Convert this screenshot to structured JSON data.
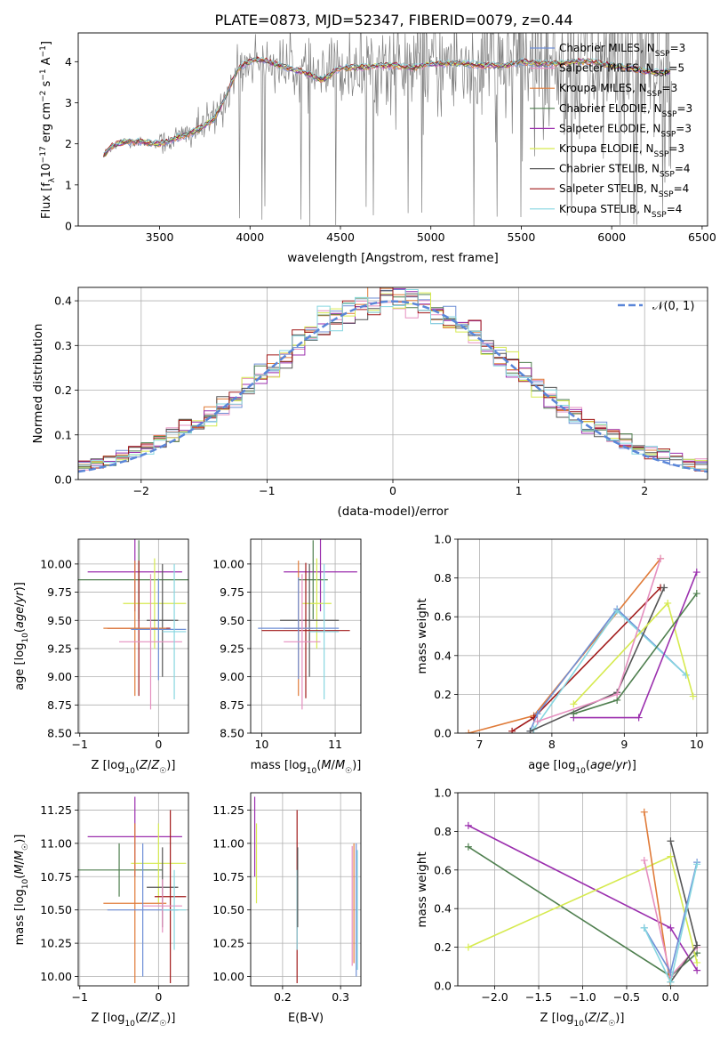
{
  "title": "PLATE=0873, MJD=52347, FIBERID=0079, z=0.44",
  "colors": {
    "chabrier_miles": "#6f8fd6",
    "salpeter_miles": "#e58fbf",
    "kroupa_miles": "#e07b39",
    "chabrier_elodie": "#4f7f4f",
    "salpeter_elodie": "#9b2fae",
    "kroupa_elodie": "#d6ea4f",
    "chabrier_stelib": "#555555",
    "salpeter_stelib": "#a11a1a",
    "kroupa_stelib": "#86d6e0",
    "normal": "#5a86d8"
  },
  "chart_data": [
    {
      "type": "line",
      "panel": "spectrum",
      "title": "PLATE=0873, MJD=52347, FIBERID=0079, z=0.44",
      "xlabel": "wavelength [Angstrom, rest frame]",
      "ylabel": "Flux [f_λ 10^-17 erg cm^-2 s^-1 A^-1]",
      "xlim": [
        3050,
        6530
      ],
      "ylim": [
        0,
        4.7
      ],
      "xticks": [
        "3500",
        "4000",
        "4500",
        "5000",
        "5500",
        "6000",
        "6500"
      ],
      "yticks": [
        "0",
        "1",
        "2",
        "3",
        "4"
      ],
      "legend_position": "top-right",
      "legend": [
        {
          "label": "Chabrier MILES, N",
          "sub": "SSP",
          "value": "=3"
        },
        {
          "label": "Salpeter MILES, N",
          "sub": "SSP",
          "value": "=5"
        },
        {
          "label": "Kroupa MILES, N",
          "sub": "SSP",
          "value": "=3"
        },
        {
          "label": "Chabrier ELODIE, N",
          "sub": "SSP",
          "value": "=3"
        },
        {
          "label": "Salpeter ELODIE, N",
          "sub": "SSP",
          "value": "=3"
        },
        {
          "label": "Kroupa ELODIE, N",
          "sub": "SSP",
          "value": "=3"
        },
        {
          "label": "Chabrier STELIB, N",
          "sub": "SSP",
          "value": "=4"
        },
        {
          "label": "Salpeter STELIB, N",
          "sub": "SSP",
          "value": "=4"
        },
        {
          "label": "Kroupa STELIB, N",
          "sub": "SSP",
          "value": "=4"
        }
      ],
      "model_continuum": {
        "x": [
          3190,
          3220,
          3300,
          3400,
          3500,
          3600,
          3700,
          3800,
          3850,
          3900,
          3950,
          4000,
          4050,
          4100,
          4200,
          4300,
          4400,
          4500,
          4600,
          4700,
          4800,
          4900,
          5000,
          5100,
          5200,
          5300,
          5400,
          5500,
          5600,
          5700,
          5800,
          5900,
          6000,
          6100,
          6200,
          6300
        ],
        "y": [
          1.7,
          1.9,
          2.05,
          2.05,
          2.0,
          2.15,
          2.3,
          2.6,
          3.0,
          3.5,
          3.9,
          4.0,
          4.05,
          4.0,
          3.85,
          3.75,
          3.55,
          3.85,
          3.85,
          3.9,
          3.9,
          3.85,
          3.95,
          3.95,
          3.95,
          3.9,
          3.9,
          4.0,
          3.95,
          3.95,
          4.0,
          4.0,
          3.9,
          3.85,
          3.75,
          3.75
        ]
      }
    },
    {
      "type": "line",
      "panel": "residual_histogram",
      "xlabel": "(data-model)/error",
      "ylabel": "Normed distribution",
      "xlim": [
        -2.5,
        2.5
      ],
      "ylim": [
        0,
        0.43
      ],
      "xticks": [
        "−2",
        "−1",
        "0",
        "1",
        "2"
      ],
      "yticks": [
        "0.0",
        "0.1",
        "0.2",
        "0.3",
        "0.4"
      ],
      "grid": true,
      "legend_position": "top-right",
      "reference_curve": {
        "name": "𝒩(0, 1)",
        "mu": 0,
        "sigma": 1
      },
      "bin_width": 0.1
    },
    {
      "type": "scatter",
      "panel": "age_vs_Z",
      "xlabel": "Z [log10(Z/Z☉)]",
      "ylabel": "age [log10(age/yr)]",
      "xlim": [
        -1.02,
        0.38
      ],
      "ylim": [
        8.5,
        10.22
      ],
      "xticks": [
        "−1",
        "0"
      ],
      "yticks": [
        "8.50",
        "8.75",
        "9.00",
        "9.25",
        "9.50",
        "9.75",
        "10.00"
      ],
      "grid": true,
      "points": [
        {
          "model": "salpeter_elodie",
          "x": -0.3,
          "xerr": 0.6,
          "y": 9.93,
          "yerr": 0.35
        },
        {
          "model": "chabrier_elodie",
          "x": -0.25,
          "xerr": 1.0,
          "y": 9.86,
          "yerr": 0.35
        },
        {
          "model": "kroupa_elodie",
          "x": -0.05,
          "xerr": 0.4,
          "y": 9.65,
          "yerr": 0.4
        },
        {
          "model": "chabrier_stelib",
          "x": 0.05,
          "xerr": 0.2,
          "y": 9.5,
          "yerr": 0.5
        },
        {
          "model": "salpeter_stelib",
          "x": -0.25,
          "xerr": 0.4,
          "y": 9.43,
          "yerr": 0.6
        },
        {
          "model": "kroupa_miles",
          "x": -0.3,
          "xerr": 0.4,
          "y": 9.43,
          "yerr": 0.6
        },
        {
          "model": "chabrier_miles",
          "x": 0.0,
          "xerr": 0.35,
          "y": 9.42,
          "yerr": 0.45
        },
        {
          "model": "salpeter_miles",
          "x": -0.1,
          "xerr": 0.4,
          "y": 9.31,
          "yerr": 0.6
        },
        {
          "model": "kroupa_stelib",
          "x": 0.2,
          "xerr": 0.15,
          "y": 9.4,
          "yerr": 0.6
        }
      ]
    },
    {
      "type": "scatter",
      "panel": "age_vs_mass",
      "xlabel": "mass [log10(M/M☉)]",
      "xlim": [
        9.85,
        11.35
      ],
      "ylim": [
        8.5,
        10.22
      ],
      "xticks": [
        "10",
        "11"
      ],
      "yticks": [
        "8.50",
        "8.75",
        "9.00",
        "9.25",
        "9.50",
        "9.75",
        "10.00"
      ],
      "grid": true,
      "points": [
        {
          "model": "salpeter_elodie",
          "x": 10.8,
          "xerr": 0.5,
          "y": 9.93,
          "yerr": 0.35
        },
        {
          "model": "chabrier_elodie",
          "x": 10.7,
          "xerr": 0.2,
          "y": 9.86,
          "yerr": 0.35
        },
        {
          "model": "kroupa_elodie",
          "x": 10.75,
          "xerr": 0.2,
          "y": 9.65,
          "yerr": 0.4
        },
        {
          "model": "chabrier_stelib",
          "x": 10.65,
          "xerr": 0.4,
          "y": 9.5,
          "yerr": 0.5
        },
        {
          "model": "salpeter_stelib",
          "x": 10.6,
          "xerr": 0.6,
          "y": 9.41,
          "yerr": 0.6
        },
        {
          "model": "kroupa_miles",
          "x": 10.5,
          "xerr": 0.2,
          "y": 9.43,
          "yerr": 0.6
        },
        {
          "model": "chabrier_miles",
          "x": 10.5,
          "xerr": 0.55,
          "y": 9.43,
          "yerr": 0.45
        },
        {
          "model": "salpeter_miles",
          "x": 10.55,
          "xerr": 0.25,
          "y": 9.31,
          "yerr": 0.6
        },
        {
          "model": "kroupa_stelib",
          "x": 10.85,
          "xerr": 0.2,
          "y": 9.4,
          "yerr": 0.6
        }
      ]
    },
    {
      "type": "line",
      "panel": "mass_weight_vs_age",
      "xlabel": "age [log10(age/yr)]",
      "ylabel": "mass weight",
      "xlim": [
        6.7,
        10.15
      ],
      "ylim": [
        0,
        1.0
      ],
      "xticks": [
        "7",
        "8",
        "9",
        "10"
      ],
      "yticks": [
        "0.0",
        "0.2",
        "0.4",
        "0.6",
        "0.8",
        "1.0"
      ],
      "grid": true,
      "series": [
        {
          "model": "kroupa_miles",
          "x": [
            6.85,
            7.75,
            9.5
          ],
          "y": [
            0.0,
            0.09,
            0.9
          ]
        },
        {
          "model": "salpeter_stelib",
          "x": [
            7.45,
            7.75,
            9.5
          ],
          "y": [
            0.01,
            0.08,
            0.75
          ]
        },
        {
          "model": "chabrier_miles",
          "x": [
            7.7,
            7.8,
            8.9,
            9.85
          ],
          "y": [
            0.01,
            0.1,
            0.64,
            0.3
          ]
        },
        {
          "model": "kroupa_stelib",
          "x": [
            7.75,
            8.9,
            9.85
          ],
          "y": [
            0.02,
            0.63,
            0.3
          ]
        },
        {
          "model": "chabrier_stelib",
          "x": [
            7.7,
            8.9,
            9.55
          ],
          "y": [
            0.01,
            0.21,
            0.75
          ]
        },
        {
          "model": "kroupa_elodie",
          "x": [
            8.3,
            9.6,
            9.95
          ],
          "y": [
            0.15,
            0.67,
            0.19
          ]
        },
        {
          "model": "salpeter_elodie",
          "x": [
            8.3,
            9.2,
            10.0
          ],
          "y": [
            0.08,
            0.08,
            0.83
          ]
        },
        {
          "model": "chabrier_elodie",
          "x": [
            8.3,
            8.9,
            10.0
          ],
          "y": [
            0.1,
            0.17,
            0.72
          ]
        },
        {
          "model": "salpeter_miles",
          "x": [
            7.8,
            8.9,
            9.5
          ],
          "y": [
            0.06,
            0.2,
            0.9
          ]
        }
      ]
    },
    {
      "type": "scatter",
      "panel": "mass_vs_Z",
      "xlabel": "Z [log10(Z/Z☉)]",
      "ylabel": "mass [log10(M/M☉)]",
      "xlim": [
        -1.02,
        0.38
      ],
      "ylim": [
        9.93,
        11.38
      ],
      "xticks": [
        "−1",
        "0"
      ],
      "yticks": [
        "10.00",
        "10.25",
        "10.50",
        "10.75",
        "11.00",
        "11.25"
      ],
      "grid": true,
      "points": [
        {
          "model": "salpeter_elodie",
          "x": -0.3,
          "xerr": 0.6,
          "y": 11.05,
          "yerr": 0.3
        },
        {
          "model": "chabrier_elodie",
          "x": -0.5,
          "xerr": 0.55,
          "y": 10.8,
          "yerr": 0.2
        },
        {
          "model": "kroupa_elodie",
          "x": 0.0,
          "xerr": 0.35,
          "y": 10.85,
          "yerr": 0.3
        },
        {
          "model": "chabrier_stelib",
          "x": 0.05,
          "xerr": 0.2,
          "y": 10.67,
          "yerr": 0.3
        },
        {
          "model": "salpeter_stelib",
          "x": 0.15,
          "xerr": 0.2,
          "y": 10.6,
          "yerr": 0.65
        },
        {
          "model": "kroupa_miles",
          "x": -0.3,
          "xerr": 0.4,
          "y": 10.55,
          "yerr": 0.6
        },
        {
          "model": "chabrier_miles",
          "x": -0.2,
          "xerr": 0.45,
          "y": 10.5,
          "yerr": 0.5
        },
        {
          "model": "salpeter_miles",
          "x": 0.05,
          "xerr": 0.25,
          "y": 10.53,
          "yerr": 0.2
        },
        {
          "model": "kroupa_stelib",
          "x": 0.2,
          "xerr": 0.15,
          "y": 10.5,
          "yerr": 0.3
        }
      ]
    },
    {
      "type": "scatter",
      "panel": "mass_vs_EBV",
      "xlabel": "E(B-V)",
      "xlim": [
        0.145,
        0.335
      ],
      "ylim": [
        9.93,
        11.38
      ],
      "xticks": [
        "0.2",
        "0.3"
      ],
      "yticks": [
        "10.00",
        "10.25",
        "10.50",
        "10.75",
        "11.00",
        "11.25"
      ],
      "grid": true,
      "points": [
        {
          "model": "salpeter_elodie",
          "x": 0.152,
          "y": 11.05,
          "yerr": 0.3
        },
        {
          "model": "kroupa_elodie",
          "x": 0.155,
          "y": 10.85,
          "yerr": 0.3
        },
        {
          "model": "salpeter_stelib",
          "x": 0.225,
          "y": 10.6,
          "yerr": 0.65
        },
        {
          "model": "kroupa_stelib",
          "x": 0.225,
          "y": 10.5,
          "yerr": 0.3
        },
        {
          "model": "chabrier_stelib",
          "x": 0.226,
          "y": 10.67,
          "yerr": 0.3
        },
        {
          "model": "salpeter_miles",
          "x": 0.32,
          "y": 10.53,
          "yerr": 0.45
        },
        {
          "model": "kroupa_miles",
          "x": 0.323,
          "y": 10.55,
          "yerr": 0.45
        },
        {
          "model": "chabrier_miles",
          "x": 0.327,
          "y": 10.5,
          "yerr": 0.5
        },
        {
          "model": "kroupa_stelib",
          "x": 0.329,
          "y": 10.5,
          "yerr": 0.45
        }
      ]
    },
    {
      "type": "line",
      "panel": "mass_weight_vs_Z",
      "xlabel": "Z [log10(Z/Z☉)]",
      "ylabel": "mass weight",
      "xlim": [
        -2.42,
        0.42
      ],
      "ylim": [
        0,
        1.0
      ],
      "xticks": [
        "−2.0",
        "−1.5",
        "−1.0",
        "−0.5",
        "0.0"
      ],
      "yticks": [
        "0.0",
        "0.2",
        "0.4",
        "0.6",
        "0.8",
        "1.0"
      ],
      "grid": true,
      "series": [
        {
          "model": "salpeter_elodie",
          "x": [
            -2.3,
            0.0,
            0.3
          ],
          "y": [
            0.83,
            0.3,
            0.08
          ]
        },
        {
          "model": "chabrier_elodie",
          "x": [
            -2.3,
            0.0,
            0.3
          ],
          "y": [
            0.72,
            0.05,
            0.17
          ]
        },
        {
          "model": "kroupa_elodie",
          "x": [
            -2.3,
            0.0,
            0.3
          ],
          "y": [
            0.2,
            0.67,
            0.12
          ]
        },
        {
          "model": "kroupa_miles",
          "x": [
            -0.3,
            0.0
          ],
          "y": [
            0.9,
            0.0
          ]
        },
        {
          "model": "salpeter_miles",
          "x": [
            -0.3,
            0.0,
            0.3
          ],
          "y": [
            0.65,
            0.05,
            0.2
          ]
        },
        {
          "model": "chabrier_stelib",
          "x": [
            0.0,
            0.3,
            0.0
          ],
          "y": [
            0.75,
            0.21,
            0.02
          ]
        },
        {
          "model": "chabrier_miles",
          "x": [
            -0.3,
            0.0,
            0.3
          ],
          "y": [
            0.3,
            0.07,
            0.64
          ]
        },
        {
          "model": "kroupa_stelib",
          "x": [
            -0.3,
            0.0,
            0.3
          ],
          "y": [
            0.3,
            0.02,
            0.63
          ]
        }
      ]
    }
  ]
}
